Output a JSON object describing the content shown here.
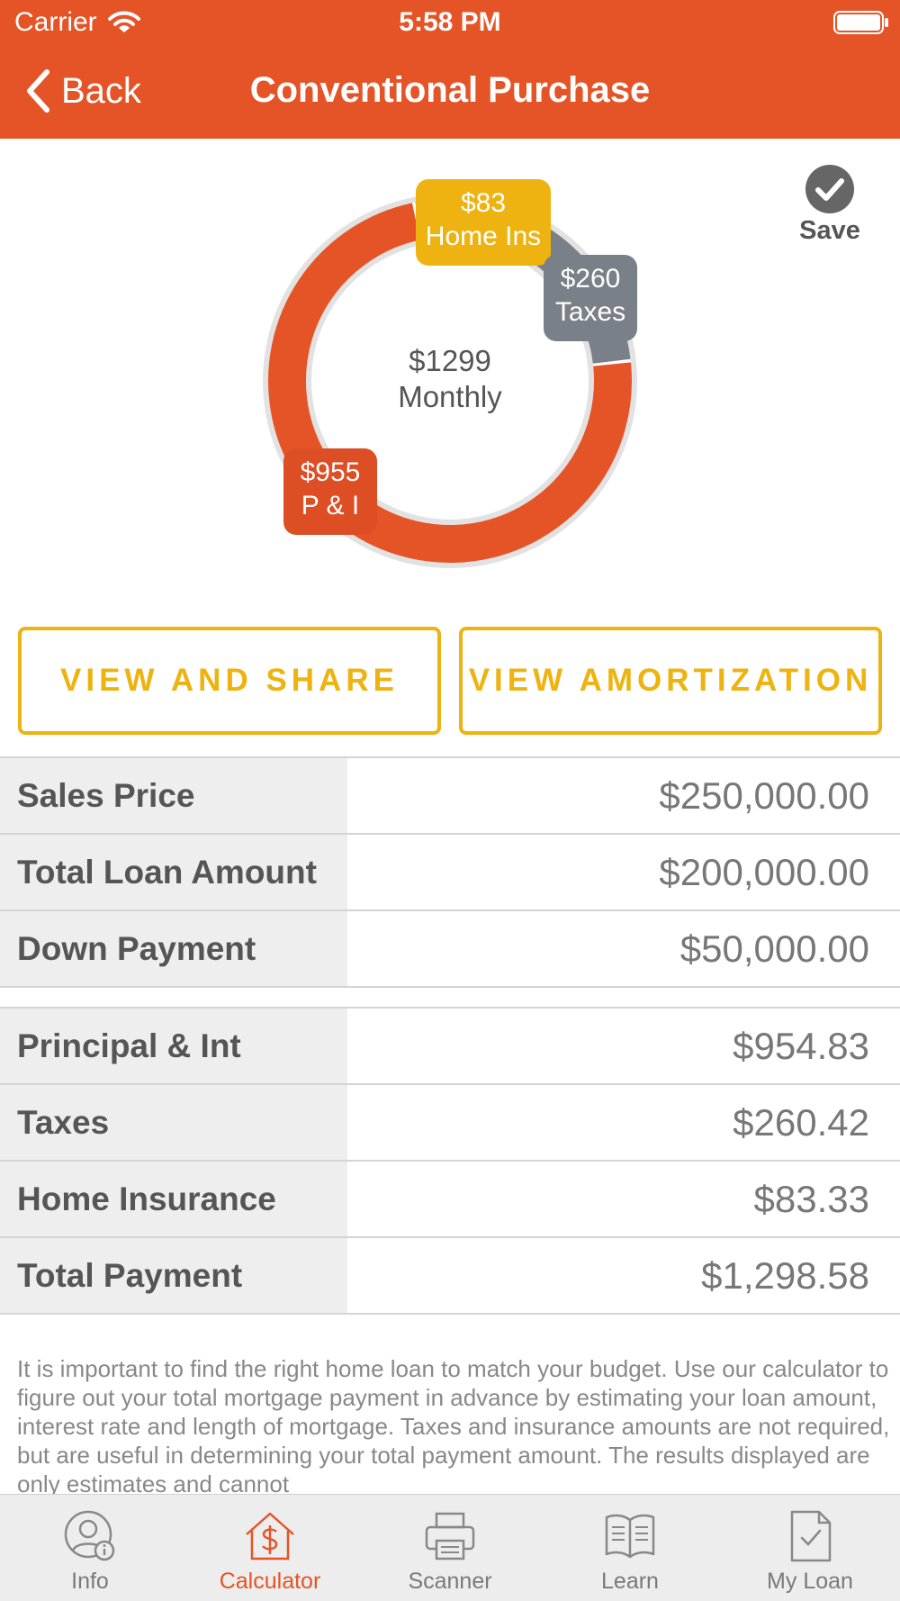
{
  "status_bar": {
    "carrier": "Carrier",
    "time": "5:58 PM"
  },
  "nav": {
    "back_label": "Back",
    "title": "Conventional Purchase"
  },
  "colors": {
    "brand_orange": "#E55427",
    "accent_yellow": "#EEB310",
    "taxes_gray": "#7A8088"
  },
  "chart_data": {
    "type": "pie",
    "center_amount": "$1299",
    "center_label": "Monthly",
    "slices": [
      {
        "label": "P & I",
        "display": "$955",
        "value": 955,
        "color": "#E55427"
      },
      {
        "label": "Taxes",
        "display": "$260",
        "value": 260,
        "color": "#7A8088"
      },
      {
        "label": "Home Ins",
        "display": "$83",
        "value": 83,
        "color": "#E55427"
      }
    ]
  },
  "save_label": "Save",
  "buttons": {
    "view_share": "VIEW AND SHARE",
    "view_amortization": "VIEW AMORTIZATION"
  },
  "loan_table": [
    {
      "label": "Sales Price",
      "value": "$250,000.00"
    },
    {
      "label": "Total Loan Amount",
      "value": "$200,000.00"
    },
    {
      "label": "Down Payment",
      "value": "$50,000.00"
    }
  ],
  "payment_table": [
    {
      "label": "Principal & Int",
      "value": "$954.83"
    },
    {
      "label": "Taxes",
      "value": "$260.42"
    },
    {
      "label": "Home Insurance",
      "value": "$83.33"
    },
    {
      "label": "Total Payment",
      "value": "$1,298.58"
    }
  ],
  "disclaimer": "It is important to find the right home loan to match your budget. Use our calculator to figure out your total mortgage payment in advance by estimating your loan amount, interest rate and length of mortgage. Taxes and insurance amounts are not required, but are useful in determining your total payment amount.  The results displayed are only estimates and cannot",
  "tabs": [
    {
      "label": "Info",
      "icon": "info-person-icon",
      "active": false
    },
    {
      "label": "Calculator",
      "icon": "calculator-house-icon",
      "active": true
    },
    {
      "label": "Scanner",
      "icon": "printer-icon",
      "active": false
    },
    {
      "label": "Learn",
      "icon": "book-icon",
      "active": false
    },
    {
      "label": "My Loan",
      "icon": "document-check-icon",
      "active": false
    }
  ]
}
